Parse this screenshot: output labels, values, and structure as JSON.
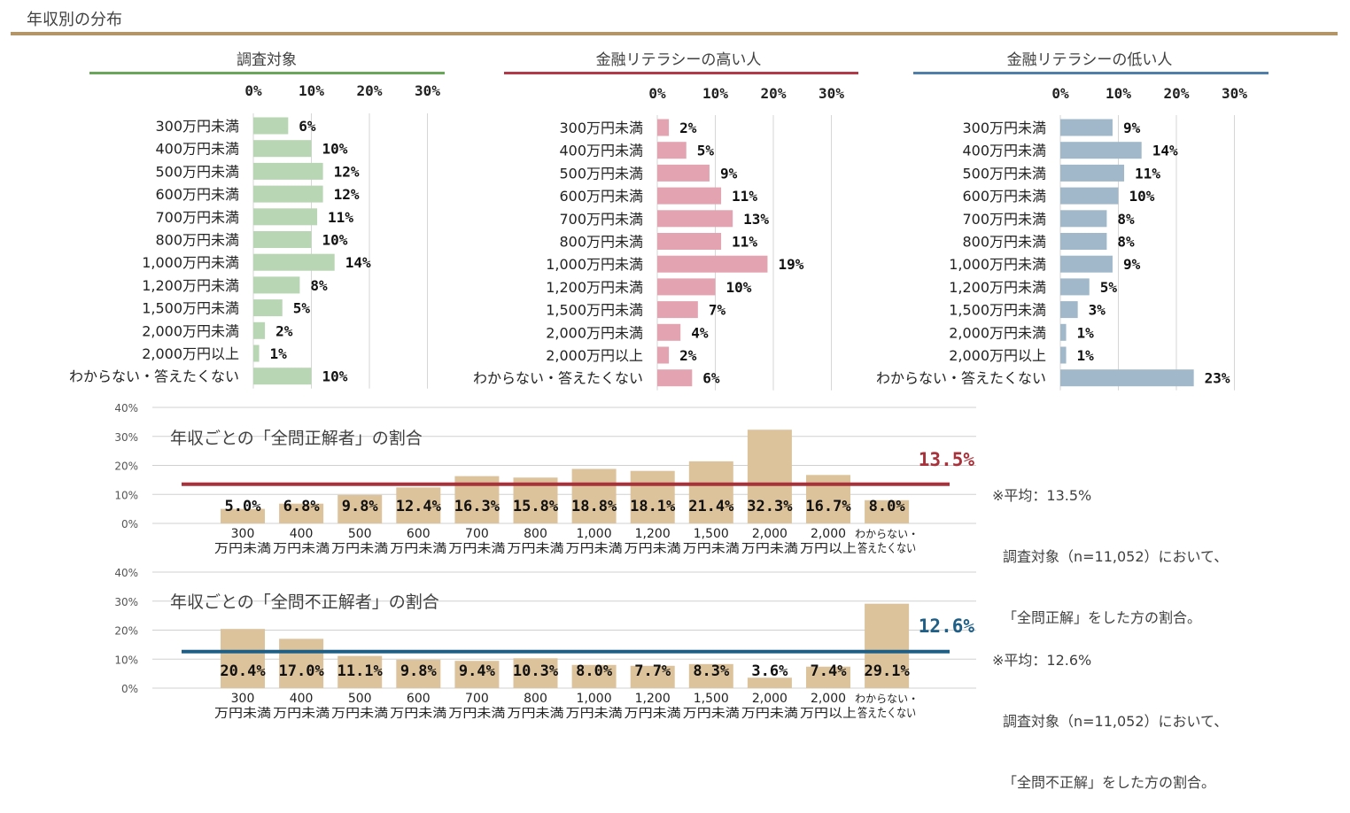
{
  "page": {
    "title": "年収別の分布"
  },
  "colors": {
    "title_rule": "#b49568",
    "green": "#b8d5b4",
    "pink": "#e3a3b0",
    "blue": "#a0b8c9",
    "tan": "#dcc39c",
    "red_line": "#a8313a",
    "blue_line": "#1f5f86",
    "green_rule": "#6aa65a",
    "pink_rule": "#b23a48",
    "blue_rule": "#4f7fa8"
  },
  "chart_data": [
    {
      "type": "bar",
      "orientation": "horizontal",
      "title": "調査対象",
      "xticks": [
        "0%",
        "10%",
        "20%",
        "30%"
      ],
      "xlim": [
        0,
        30
      ],
      "categories": [
        "300万円未満",
        "400万円未満",
        "500万円未満",
        "600万円未満",
        "700万円未満",
        "800万円未満",
        "1,000万円未満",
        "1,200万円未満",
        "1,500万円未満",
        "2,000万円未満",
        "2,000万円以上",
        "わからない・答えたくない"
      ],
      "values": [
        6,
        10,
        12,
        12,
        11,
        10,
        14,
        8,
        5,
        2,
        1,
        10
      ],
      "labels": [
        "6%",
        "10%",
        "12%",
        "12%",
        "11%",
        "10%",
        "14%",
        "8%",
        "5%",
        "2%",
        "1%",
        "10%"
      ]
    },
    {
      "type": "bar",
      "orientation": "horizontal",
      "title": "金融リテラシーの高い人",
      "xticks": [
        "0%",
        "10%",
        "20%",
        "30%"
      ],
      "xlim": [
        0,
        30
      ],
      "categories": [
        "300万円未満",
        "400万円未満",
        "500万円未満",
        "600万円未満",
        "700万円未満",
        "800万円未満",
        "1,000万円未満",
        "1,200万円未満",
        "1,500万円未満",
        "2,000万円未満",
        "2,000万円以上",
        "わからない・答えたくない"
      ],
      "values": [
        2,
        5,
        9,
        11,
        13,
        11,
        19,
        10,
        7,
        4,
        2,
        6
      ],
      "labels": [
        "2%",
        "5%",
        "9%",
        "11%",
        "13%",
        "11%",
        "19%",
        "10%",
        "7%",
        "4%",
        "2%",
        "6%"
      ]
    },
    {
      "type": "bar",
      "orientation": "horizontal",
      "title": "金融リテラシーの低い人",
      "xticks": [
        "0%",
        "10%",
        "20%",
        "30%"
      ],
      "xlim": [
        0,
        30
      ],
      "categories": [
        "300万円未満",
        "400万円未満",
        "500万円未満",
        "600万円未満",
        "700万円未満",
        "800万円未満",
        "1,000万円未満",
        "1,200万円未満",
        "1,500万円未満",
        "2,000万円未満",
        "2,000万円以上",
        "わからない・答えたくない"
      ],
      "values": [
        9,
        14,
        11,
        10,
        8,
        8,
        9,
        5,
        3,
        1,
        1,
        23
      ],
      "labels": [
        "9%",
        "14%",
        "11%",
        "10%",
        "8%",
        "8%",
        "9%",
        "5%",
        "3%",
        "1%",
        "1%",
        "23%"
      ]
    },
    {
      "type": "bar",
      "title": "年収ごとの「全問正解者」の割合",
      "yticks": [
        "40%",
        "30%",
        "20%",
        "10%",
        "0%"
      ],
      "ylim": [
        0,
        40
      ],
      "categories": [
        [
          "300",
          "万円未満"
        ],
        [
          "400",
          "万円未満"
        ],
        [
          "500",
          "万円未満"
        ],
        [
          "600",
          "万円未満"
        ],
        [
          "700",
          "万円未満"
        ],
        [
          "800",
          "万円未満"
        ],
        [
          "1,000",
          "万円未満"
        ],
        [
          "1,200",
          "万円未満"
        ],
        [
          "1,500",
          "万円未満"
        ],
        [
          "2,000",
          "万円未満"
        ],
        [
          "2,000",
          "万円以上"
        ],
        [
          "わからない・",
          "答えたくない"
        ]
      ],
      "values": [
        5.0,
        6.8,
        9.8,
        12.4,
        16.3,
        15.8,
        18.8,
        18.1,
        21.4,
        32.3,
        16.7,
        8.0
      ],
      "labels": [
        "5.0%",
        "6.8%",
        "9.8%",
        "12.4%",
        "16.3%",
        "15.8%",
        "18.8%",
        "18.1%",
        "21.4%",
        "32.3%",
        "16.7%",
        "8.0%"
      ],
      "average": 13.5,
      "average_label": "13.5%",
      "note": [
        "※平均：13.5%",
        "調査対象（n=11,052）において、",
        "「全問正解」をした方の割合。"
      ]
    },
    {
      "type": "bar",
      "title": "年収ごとの「全問不正解者」の割合",
      "yticks": [
        "40%",
        "30%",
        "20%",
        "10%",
        "0%"
      ],
      "ylim": [
        0,
        40
      ],
      "categories": [
        [
          "300",
          "万円未満"
        ],
        [
          "400",
          "万円未満"
        ],
        [
          "500",
          "万円未満"
        ],
        [
          "600",
          "万円未満"
        ],
        [
          "700",
          "万円未満"
        ],
        [
          "800",
          "万円未満"
        ],
        [
          "1,000",
          "万円未満"
        ],
        [
          "1,200",
          "万円未満"
        ],
        [
          "1,500",
          "万円未満"
        ],
        [
          "2,000",
          "万円未満"
        ],
        [
          "2,000",
          "万円以上"
        ],
        [
          "わからない・",
          "答えたくない"
        ]
      ],
      "values": [
        20.4,
        17.0,
        11.1,
        9.8,
        9.4,
        10.3,
        8.0,
        7.7,
        8.3,
        3.6,
        7.4,
        29.1
      ],
      "labels": [
        "20.4%",
        "17.0%",
        "11.1%",
        "9.8%",
        "9.4%",
        "10.3%",
        "8.0%",
        "7.7%",
        "8.3%",
        "3.6%",
        "7.4%",
        "29.1%"
      ],
      "average": 12.6,
      "average_label": "12.6%",
      "note": [
        "※平均：12.6%",
        "調査対象（n=11,052）において、",
        "「全問不正解」をした方の割合。"
      ]
    }
  ]
}
